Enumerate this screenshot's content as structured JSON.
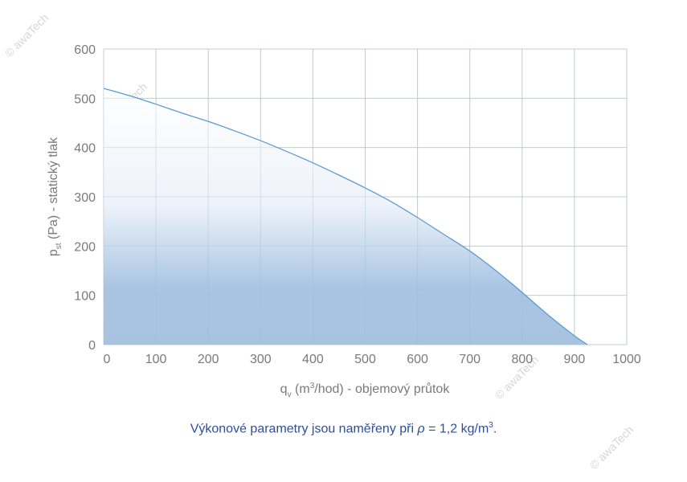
{
  "chart_data": {
    "type": "area",
    "xlim": [
      0,
      1000
    ],
    "ylim": [
      0,
      600
    ],
    "x_ticks": [
      0,
      100,
      200,
      300,
      400,
      500,
      600,
      700,
      800,
      900,
      1000
    ],
    "y_ticks": [
      0,
      100,
      200,
      300,
      400,
      500,
      600
    ],
    "grid": true,
    "xlabel": {
      "symbol": "q",
      "subscript": "v",
      "unit_pre": " (m",
      "unit_sup": "3",
      "unit_post": "/hod) - objemový průtok"
    },
    "ylabel": {
      "symbol": "p",
      "subscript": "st",
      "rest": " (Pa) - statický tlak"
    },
    "series": [
      {
        "x": [
          0,
          50,
          100,
          150,
          200,
          250,
          300,
          350,
          400,
          450,
          500,
          550,
          600,
          650,
          700,
          750,
          800,
          850,
          900,
          925
        ],
        "y": [
          520,
          505,
          488,
          470,
          453,
          434,
          414,
          392,
          369,
          344,
          318,
          290,
          258,
          224,
          190,
          150,
          106,
          60,
          18,
          0
        ],
        "color": "#5b9bd5"
      }
    ]
  },
  "note": {
    "text": "Výkonové parametry jsou naměřeny při ",
    "rho": "ρ",
    "value": " = 1,2 kg/m",
    "sup": "3",
    "end": "."
  },
  "watermark": "© awaTech"
}
